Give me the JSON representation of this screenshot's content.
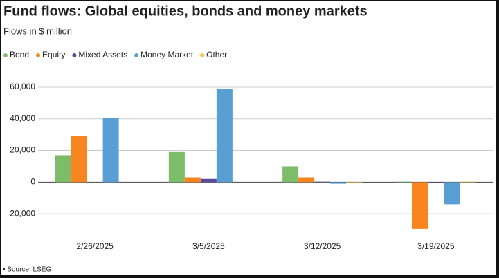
{
  "chart_data": {
    "type": "bar",
    "title": "Fund flows: Global equities, bonds and money markets",
    "subtitle": "Flows in $ million",
    "source": "• Source: LSEG",
    "categories": [
      "2/26/2025",
      "3/5/2025",
      "3/12/2025",
      "3/19/2025"
    ],
    "series": [
      {
        "name": "Bond",
        "color": "#7dbd6a",
        "values": [
          17000,
          19000,
          10000,
          300
        ]
      },
      {
        "name": "Equity",
        "color": "#f7861f",
        "values": [
          29000,
          3000,
          3000,
          -29500
        ]
      },
      {
        "name": "Mixed Assets",
        "color": "#5b4a9e",
        "values": [
          0,
          2000,
          300,
          -300
        ]
      },
      {
        "name": "Money Market",
        "color": "#5a9fd4",
        "values": [
          40500,
          59000,
          -1000,
          -14000
        ]
      },
      {
        "name": "Other",
        "color": "#f5c242",
        "values": [
          0,
          0,
          -300,
          300
        ]
      }
    ],
    "ylim": [
      -30000,
      60000
    ],
    "yticks": [
      {
        "value": -20000,
        "label": "-20,000"
      },
      0,
      {
        "value": 20000,
        "label": "20,000"
      },
      {
        "value": 40000,
        "label": "40,000"
      },
      {
        "value": 60000,
        "label": "60,000"
      }
    ],
    "grid": true,
    "legend": "top-left"
  }
}
